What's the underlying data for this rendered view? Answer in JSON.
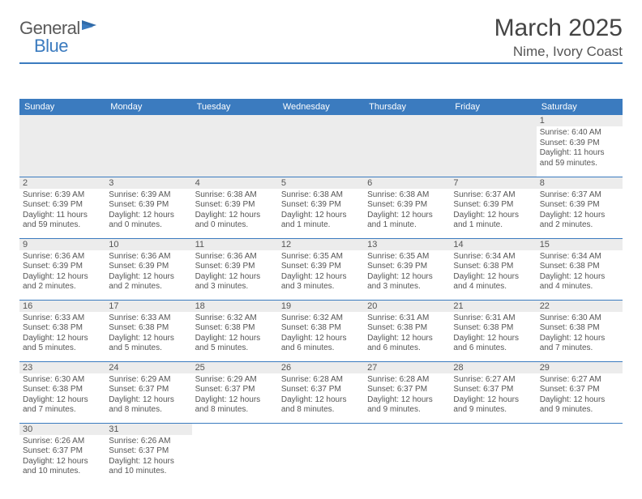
{
  "logo": {
    "text1": "General",
    "text2": "Blue"
  },
  "title": "March 2025",
  "location": "Nime, Ivory Coast",
  "colors": {
    "accent": "#3b7bbf",
    "header_bg": "#3b7bbf",
    "daynum_bg": "#ececec",
    "text": "#555555",
    "page_bg": "#ffffff"
  },
  "day_headers": [
    "Sunday",
    "Monday",
    "Tuesday",
    "Wednesday",
    "Thursday",
    "Friday",
    "Saturday"
  ],
  "weeks": [
    [
      null,
      null,
      null,
      null,
      null,
      null,
      {
        "n": "1",
        "sr": "Sunrise: 6:40 AM",
        "ss": "Sunset: 6:39 PM",
        "dl": "Daylight: 11 hours and 59 minutes."
      }
    ],
    [
      {
        "n": "2",
        "sr": "Sunrise: 6:39 AM",
        "ss": "Sunset: 6:39 PM",
        "dl": "Daylight: 11 hours and 59 minutes."
      },
      {
        "n": "3",
        "sr": "Sunrise: 6:39 AM",
        "ss": "Sunset: 6:39 PM",
        "dl": "Daylight: 12 hours and 0 minutes."
      },
      {
        "n": "4",
        "sr": "Sunrise: 6:38 AM",
        "ss": "Sunset: 6:39 PM",
        "dl": "Daylight: 12 hours and 0 minutes."
      },
      {
        "n": "5",
        "sr": "Sunrise: 6:38 AM",
        "ss": "Sunset: 6:39 PM",
        "dl": "Daylight: 12 hours and 1 minute."
      },
      {
        "n": "6",
        "sr": "Sunrise: 6:38 AM",
        "ss": "Sunset: 6:39 PM",
        "dl": "Daylight: 12 hours and 1 minute."
      },
      {
        "n": "7",
        "sr": "Sunrise: 6:37 AM",
        "ss": "Sunset: 6:39 PM",
        "dl": "Daylight: 12 hours and 1 minute."
      },
      {
        "n": "8",
        "sr": "Sunrise: 6:37 AM",
        "ss": "Sunset: 6:39 PM",
        "dl": "Daylight: 12 hours and 2 minutes."
      }
    ],
    [
      {
        "n": "9",
        "sr": "Sunrise: 6:36 AM",
        "ss": "Sunset: 6:39 PM",
        "dl": "Daylight: 12 hours and 2 minutes."
      },
      {
        "n": "10",
        "sr": "Sunrise: 6:36 AM",
        "ss": "Sunset: 6:39 PM",
        "dl": "Daylight: 12 hours and 2 minutes."
      },
      {
        "n": "11",
        "sr": "Sunrise: 6:36 AM",
        "ss": "Sunset: 6:39 PM",
        "dl": "Daylight: 12 hours and 3 minutes."
      },
      {
        "n": "12",
        "sr": "Sunrise: 6:35 AM",
        "ss": "Sunset: 6:39 PM",
        "dl": "Daylight: 12 hours and 3 minutes."
      },
      {
        "n": "13",
        "sr": "Sunrise: 6:35 AM",
        "ss": "Sunset: 6:39 PM",
        "dl": "Daylight: 12 hours and 3 minutes."
      },
      {
        "n": "14",
        "sr": "Sunrise: 6:34 AM",
        "ss": "Sunset: 6:38 PM",
        "dl": "Daylight: 12 hours and 4 minutes."
      },
      {
        "n": "15",
        "sr": "Sunrise: 6:34 AM",
        "ss": "Sunset: 6:38 PM",
        "dl": "Daylight: 12 hours and 4 minutes."
      }
    ],
    [
      {
        "n": "16",
        "sr": "Sunrise: 6:33 AM",
        "ss": "Sunset: 6:38 PM",
        "dl": "Daylight: 12 hours and 5 minutes."
      },
      {
        "n": "17",
        "sr": "Sunrise: 6:33 AM",
        "ss": "Sunset: 6:38 PM",
        "dl": "Daylight: 12 hours and 5 minutes."
      },
      {
        "n": "18",
        "sr": "Sunrise: 6:32 AM",
        "ss": "Sunset: 6:38 PM",
        "dl": "Daylight: 12 hours and 5 minutes."
      },
      {
        "n": "19",
        "sr": "Sunrise: 6:32 AM",
        "ss": "Sunset: 6:38 PM",
        "dl": "Daylight: 12 hours and 6 minutes."
      },
      {
        "n": "20",
        "sr": "Sunrise: 6:31 AM",
        "ss": "Sunset: 6:38 PM",
        "dl": "Daylight: 12 hours and 6 minutes."
      },
      {
        "n": "21",
        "sr": "Sunrise: 6:31 AM",
        "ss": "Sunset: 6:38 PM",
        "dl": "Daylight: 12 hours and 6 minutes."
      },
      {
        "n": "22",
        "sr": "Sunrise: 6:30 AM",
        "ss": "Sunset: 6:38 PM",
        "dl": "Daylight: 12 hours and 7 minutes."
      }
    ],
    [
      {
        "n": "23",
        "sr": "Sunrise: 6:30 AM",
        "ss": "Sunset: 6:38 PM",
        "dl": "Daylight: 12 hours and 7 minutes."
      },
      {
        "n": "24",
        "sr": "Sunrise: 6:29 AM",
        "ss": "Sunset: 6:37 PM",
        "dl": "Daylight: 12 hours and 8 minutes."
      },
      {
        "n": "25",
        "sr": "Sunrise: 6:29 AM",
        "ss": "Sunset: 6:37 PM",
        "dl": "Daylight: 12 hours and 8 minutes."
      },
      {
        "n": "26",
        "sr": "Sunrise: 6:28 AM",
        "ss": "Sunset: 6:37 PM",
        "dl": "Daylight: 12 hours and 8 minutes."
      },
      {
        "n": "27",
        "sr": "Sunrise: 6:28 AM",
        "ss": "Sunset: 6:37 PM",
        "dl": "Daylight: 12 hours and 9 minutes."
      },
      {
        "n": "28",
        "sr": "Sunrise: 6:27 AM",
        "ss": "Sunset: 6:37 PM",
        "dl": "Daylight: 12 hours and 9 minutes."
      },
      {
        "n": "29",
        "sr": "Sunrise: 6:27 AM",
        "ss": "Sunset: 6:37 PM",
        "dl": "Daylight: 12 hours and 9 minutes."
      }
    ],
    [
      {
        "n": "30",
        "sr": "Sunrise: 6:26 AM",
        "ss": "Sunset: 6:37 PM",
        "dl": "Daylight: 12 hours and 10 minutes."
      },
      {
        "n": "31",
        "sr": "Sunrise: 6:26 AM",
        "ss": "Sunset: 6:37 PM",
        "dl": "Daylight: 12 hours and 10 minutes."
      },
      null,
      null,
      null,
      null,
      null
    ]
  ]
}
